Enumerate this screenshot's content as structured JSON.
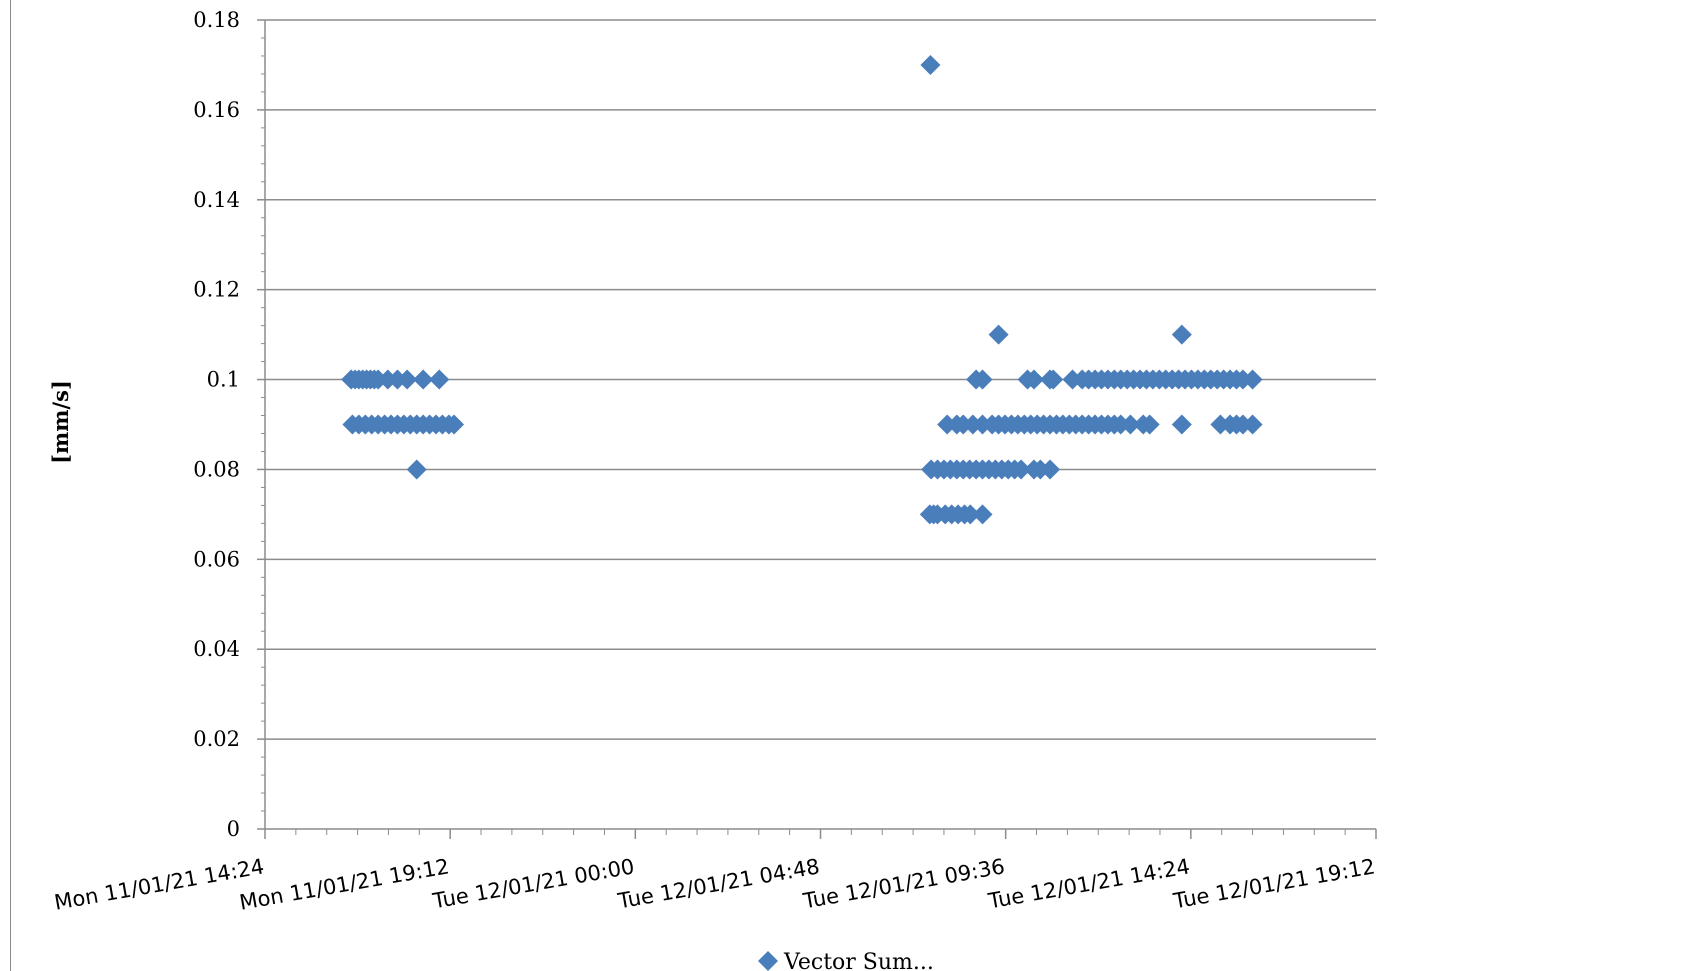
{
  "chart_data": {
    "type": "scatter",
    "title": "",
    "xlabel": "",
    "ylabel": "[mm/s]",
    "ylim": [
      0,
      0.18
    ],
    "yticks": [
      0,
      0.02,
      0.04,
      0.06,
      0.08,
      0.1,
      0.12,
      0.14,
      0.16,
      0.18
    ],
    "ytick_labels": [
      "0",
      "0.02",
      "0.04",
      "0.06",
      "0.08",
      "0.1",
      "0.12",
      "0.14",
      "0.16",
      "0.18"
    ],
    "xlim": [
      "2021-01-11T14:24",
      "2021-01-12T19:12"
    ],
    "xticks": [
      "2021-01-11T14:24",
      "2021-01-11T19:12",
      "2021-01-12T00:00",
      "2021-01-12T04:48",
      "2021-01-12T09:36",
      "2021-01-12T14:24",
      "2021-01-12T19:12"
    ],
    "xtick_labels": [
      "Mon 11/01/21 14:24",
      "Mon 11/01/21 19:12",
      "Tue 12/01/21 00:00",
      "Tue 12/01/21 04:48",
      "Tue 12/01/21 09:36",
      "Tue 12/01/21 14:24",
      "Tue 12/01/21 19:12"
    ],
    "grid": "horizontal",
    "legend_position": "bottom",
    "series": [
      {
        "name": "Vector Sum...",
        "color": "#4a7ebb",
        "marker": "diamond",
        "points": [
          [
            "2021-01-11T16:38",
            0.1
          ],
          [
            "2021-01-11T16:44",
            0.1
          ],
          [
            "2021-01-11T16:50",
            0.1
          ],
          [
            "2021-01-11T16:56",
            0.1
          ],
          [
            "2021-01-11T17:02",
            0.1
          ],
          [
            "2021-01-11T17:08",
            0.1
          ],
          [
            "2021-01-11T17:14",
            0.1
          ],
          [
            "2021-01-11T17:20",
            0.1
          ],
          [
            "2021-01-11T17:35",
            0.1
          ],
          [
            "2021-01-11T17:50",
            0.1
          ],
          [
            "2021-01-11T18:05",
            0.1
          ],
          [
            "2021-01-11T18:30",
            0.1
          ],
          [
            "2021-01-11T18:55",
            0.1
          ],
          [
            "2021-01-11T16:40",
            0.09
          ],
          [
            "2021-01-11T16:50",
            0.09
          ],
          [
            "2021-01-11T17:00",
            0.09
          ],
          [
            "2021-01-11T17:10",
            0.09
          ],
          [
            "2021-01-11T17:20",
            0.09
          ],
          [
            "2021-01-11T17:30",
            0.09
          ],
          [
            "2021-01-11T17:40",
            0.09
          ],
          [
            "2021-01-11T17:50",
            0.09
          ],
          [
            "2021-01-11T18:00",
            0.09
          ],
          [
            "2021-01-11T18:10",
            0.09
          ],
          [
            "2021-01-11T18:20",
            0.09
          ],
          [
            "2021-01-11T18:30",
            0.09
          ],
          [
            "2021-01-11T18:40",
            0.09
          ],
          [
            "2021-01-11T18:50",
            0.09
          ],
          [
            "2021-01-11T19:00",
            0.09
          ],
          [
            "2021-01-11T19:10",
            0.09
          ],
          [
            "2021-01-11T19:18",
            0.09
          ],
          [
            "2021-01-11T18:20",
            0.08
          ],
          [
            "2021-01-12T07:39",
            0.17
          ],
          [
            "2021-01-12T07:38",
            0.07
          ],
          [
            "2021-01-12T07:44",
            0.07
          ],
          [
            "2021-01-12T07:50",
            0.07
          ],
          [
            "2021-01-12T08:02",
            0.07
          ],
          [
            "2021-01-12T08:12",
            0.07
          ],
          [
            "2021-01-12T08:22",
            0.07
          ],
          [
            "2021-01-12T08:32",
            0.07
          ],
          [
            "2021-01-12T08:41",
            0.07
          ],
          [
            "2021-01-12T09:00",
            0.07
          ],
          [
            "2021-01-12T07:40",
            0.08
          ],
          [
            "2021-01-12T07:50",
            0.08
          ],
          [
            "2021-01-12T08:00",
            0.08
          ],
          [
            "2021-01-12T08:10",
            0.08
          ],
          [
            "2021-01-12T08:20",
            0.08
          ],
          [
            "2021-01-12T08:30",
            0.08
          ],
          [
            "2021-01-12T08:40",
            0.08
          ],
          [
            "2021-01-12T08:50",
            0.08
          ],
          [
            "2021-01-12T09:00",
            0.08
          ],
          [
            "2021-01-12T09:10",
            0.08
          ],
          [
            "2021-01-12T09:20",
            0.08
          ],
          [
            "2021-01-12T09:30",
            0.08
          ],
          [
            "2021-01-12T09:40",
            0.08
          ],
          [
            "2021-01-12T09:50",
            0.08
          ],
          [
            "2021-01-12T10:00",
            0.08
          ],
          [
            "2021-01-12T10:20",
            0.08
          ],
          [
            "2021-01-12T10:30",
            0.08
          ],
          [
            "2021-01-12T10:45",
            0.08
          ],
          [
            "2021-01-12T08:05",
            0.09
          ],
          [
            "2021-01-12T08:20",
            0.09
          ],
          [
            "2021-01-12T08:30",
            0.09
          ],
          [
            "2021-01-12T08:45",
            0.09
          ],
          [
            "2021-01-12T09:00",
            0.09
          ],
          [
            "2021-01-12T09:15",
            0.09
          ],
          [
            "2021-01-12T09:25",
            0.09
          ],
          [
            "2021-01-12T09:35",
            0.09
          ],
          [
            "2021-01-12T09:45",
            0.09
          ],
          [
            "2021-01-12T09:55",
            0.09
          ],
          [
            "2021-01-12T10:05",
            0.09
          ],
          [
            "2021-01-12T10:15",
            0.09
          ],
          [
            "2021-01-12T10:25",
            0.09
          ],
          [
            "2021-01-12T10:35",
            0.09
          ],
          [
            "2021-01-12T10:45",
            0.09
          ],
          [
            "2021-01-12T10:55",
            0.09
          ],
          [
            "2021-01-12T11:05",
            0.09
          ],
          [
            "2021-01-12T11:15",
            0.09
          ],
          [
            "2021-01-12T11:25",
            0.09
          ],
          [
            "2021-01-12T11:35",
            0.09
          ],
          [
            "2021-01-12T11:45",
            0.09
          ],
          [
            "2021-01-12T11:55",
            0.09
          ],
          [
            "2021-01-12T12:05",
            0.09
          ],
          [
            "2021-01-12T12:15",
            0.09
          ],
          [
            "2021-01-12T12:25",
            0.09
          ],
          [
            "2021-01-12T12:35",
            0.09
          ],
          [
            "2021-01-12T12:50",
            0.09
          ],
          [
            "2021-01-12T13:10",
            0.09
          ],
          [
            "2021-01-12T13:20",
            0.09
          ],
          [
            "2021-01-12T14:10",
            0.09
          ],
          [
            "2021-01-12T15:10",
            0.09
          ],
          [
            "2021-01-12T15:25",
            0.09
          ],
          [
            "2021-01-12T15:35",
            0.09
          ],
          [
            "2021-01-12T15:45",
            0.09
          ],
          [
            "2021-01-12T16:00",
            0.09
          ],
          [
            "2021-01-12T08:50",
            0.1
          ],
          [
            "2021-01-12T09:00",
            0.1
          ],
          [
            "2021-01-12T10:10",
            0.1
          ],
          [
            "2021-01-12T10:20",
            0.1
          ],
          [
            "2021-01-12T10:45",
            0.1
          ],
          [
            "2021-01-12T10:50",
            0.1
          ],
          [
            "2021-01-12T11:20",
            0.1
          ],
          [
            "2021-01-12T11:35",
            0.1
          ],
          [
            "2021-01-12T11:45",
            0.1
          ],
          [
            "2021-01-12T11:55",
            0.1
          ],
          [
            "2021-01-12T12:05",
            0.1
          ],
          [
            "2021-01-12T12:15",
            0.1
          ],
          [
            "2021-01-12T12:25",
            0.1
          ],
          [
            "2021-01-12T12:35",
            0.1
          ],
          [
            "2021-01-12T12:45",
            0.1
          ],
          [
            "2021-01-12T12:55",
            0.1
          ],
          [
            "2021-01-12T13:05",
            0.1
          ],
          [
            "2021-01-12T13:15",
            0.1
          ],
          [
            "2021-01-12T13:25",
            0.1
          ],
          [
            "2021-01-12T13:35",
            0.1
          ],
          [
            "2021-01-12T13:45",
            0.1
          ],
          [
            "2021-01-12T13:55",
            0.1
          ],
          [
            "2021-01-12T14:05",
            0.1
          ],
          [
            "2021-01-12T14:15",
            0.1
          ],
          [
            "2021-01-12T14:25",
            0.1
          ],
          [
            "2021-01-12T14:35",
            0.1
          ],
          [
            "2021-01-12T14:45",
            0.1
          ],
          [
            "2021-01-12T14:55",
            0.1
          ],
          [
            "2021-01-12T15:05",
            0.1
          ],
          [
            "2021-01-12T15:15",
            0.1
          ],
          [
            "2021-01-12T15:25",
            0.1
          ],
          [
            "2021-01-12T15:35",
            0.1
          ],
          [
            "2021-01-12T15:45",
            0.1
          ],
          [
            "2021-01-12T16:00",
            0.1
          ],
          [
            "2021-01-12T09:25",
            0.11
          ],
          [
            "2021-01-12T14:10",
            0.11
          ]
        ]
      }
    ]
  }
}
